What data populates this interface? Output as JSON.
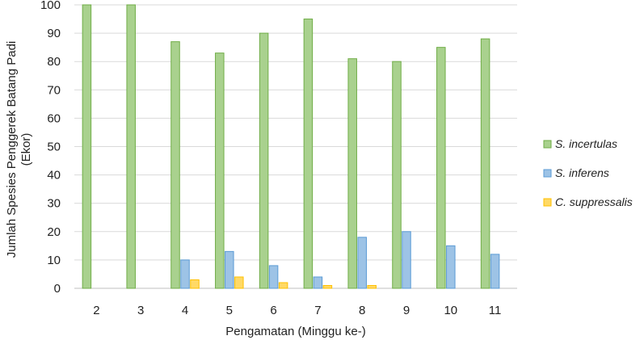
{
  "chart_data": {
    "type": "bar",
    "title": "",
    "xlabel": "Pengamatan (Minggu ke-)",
    "ylabel_line1": "Jumlah Spesies Penggerek Batang Padi",
    "ylabel_line2": "(Ekor)",
    "ylim": [
      0,
      100
    ],
    "yticks": [
      0,
      10,
      20,
      30,
      40,
      50,
      60,
      70,
      80,
      90,
      100
    ],
    "grid": true,
    "legend_position": "right",
    "categories": [
      "2",
      "3",
      "4",
      "5",
      "6",
      "7",
      "8",
      "9",
      "10",
      "11"
    ],
    "series": [
      {
        "name": "S. incertulas",
        "fill": "#a9d18e",
        "stroke": "#70ad47",
        "values": [
          100,
          100,
          87,
          83,
          90,
          95,
          81,
          80,
          85,
          88
        ]
      },
      {
        "name": "S. inferens",
        "fill": "#9dc3e6",
        "stroke": "#5b9bd5",
        "values": [
          0,
          0,
          10,
          13,
          8,
          4,
          18,
          20,
          15,
          12
        ]
      },
      {
        "name": "C. suppressalis",
        "fill": "#ffd966",
        "stroke": "#ffc000",
        "values": [
          0,
          0,
          3,
          4,
          2,
          1,
          1,
          0,
          0,
          0
        ]
      }
    ]
  }
}
